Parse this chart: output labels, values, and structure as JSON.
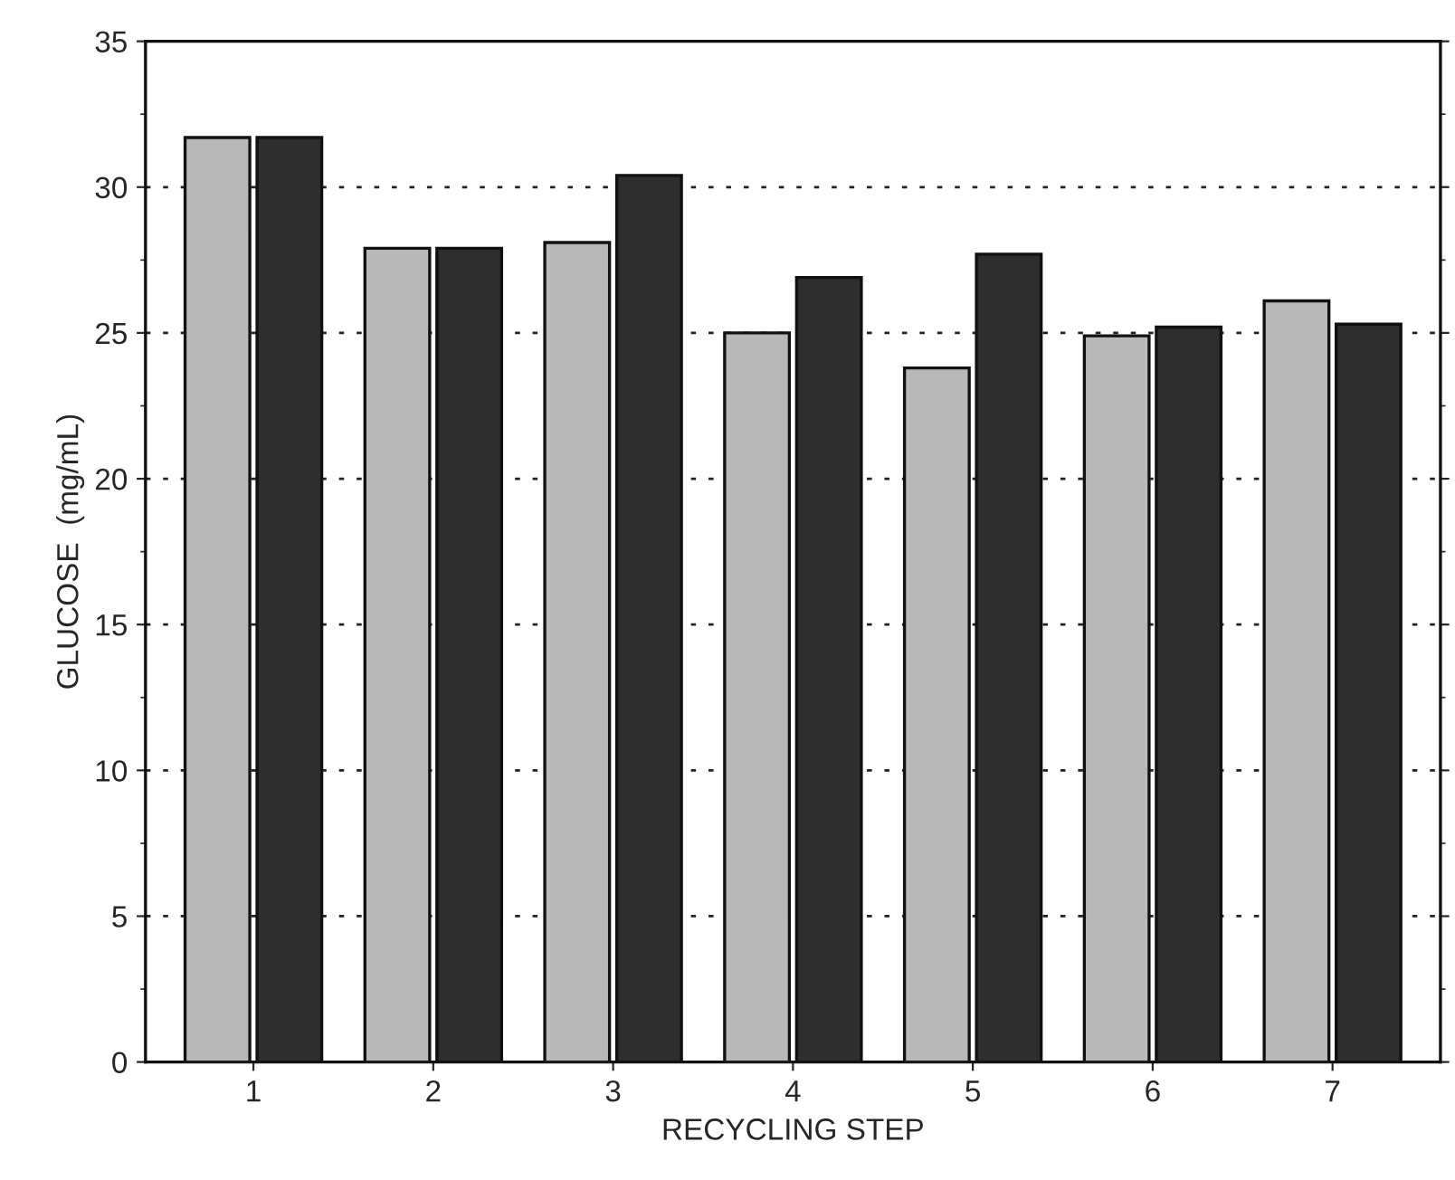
{
  "chart_data": {
    "type": "bar",
    "xlabel": "RECYCLING STEP",
    "ylabel": "GLUCOSE  (mg/mL)",
    "categories": [
      "1",
      "2",
      "3",
      "4",
      "5",
      "6",
      "7"
    ],
    "series": [
      {
        "color": "#b8b8b8",
        "values": [
          31.7,
          27.9,
          28.1,
          25.0,
          23.8,
          24.9,
          26.1
        ]
      },
      {
        "color": "#2e2e2e",
        "values": [
          31.7,
          27.9,
          30.4,
          26.9,
          27.7,
          25.2,
          25.3
        ]
      }
    ],
    "ylim": [
      0,
      35
    ],
    "yticks": [
      0,
      5,
      10,
      15,
      20,
      25,
      30,
      35
    ],
    "grid": "y",
    "legend": false
  }
}
